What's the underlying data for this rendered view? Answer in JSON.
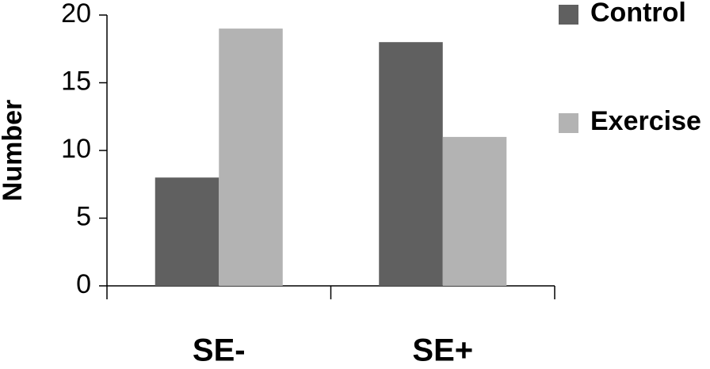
{
  "chart_data": {
    "type": "bar",
    "y_label": "Number",
    "categories": [
      "SE-",
      "SE+"
    ],
    "series": [
      {
        "name": "Control",
        "color": "#606060",
        "values": [
          8,
          18
        ]
      },
      {
        "name": "Exercise",
        "color": "#b3b3b3",
        "values": [
          19,
          11
        ]
      }
    ],
    "ylim": [
      0,
      20
    ],
    "yticks": [
      0,
      5,
      10,
      15,
      20
    ],
    "grid": false,
    "legend": "right"
  }
}
